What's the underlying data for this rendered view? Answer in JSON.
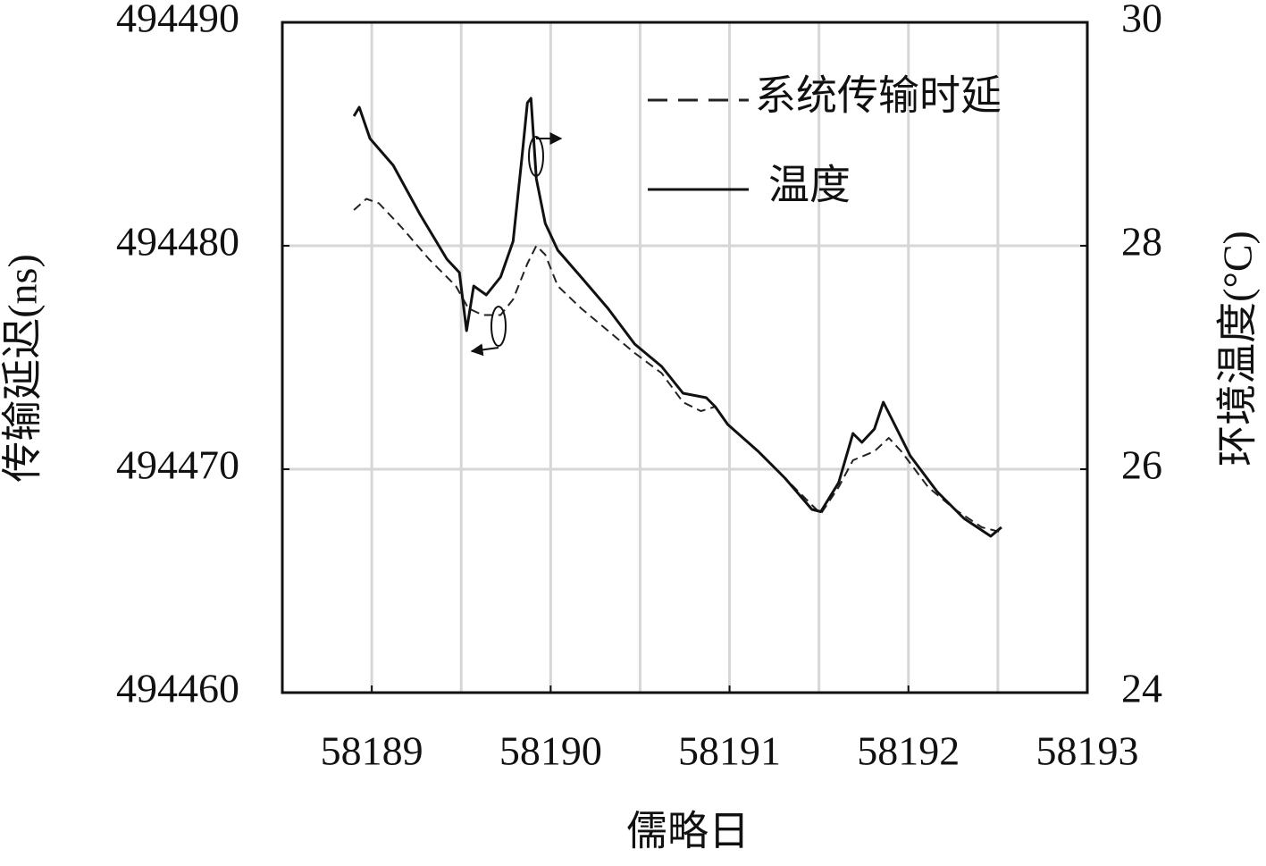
{
  "chart_data": {
    "type": "line",
    "xlabel": "儒略日",
    "ylabel": "传输延迟(ns)",
    "y2label": "环境温度(°C)",
    "xlim": [
      58188.5,
      58193
    ],
    "xticks": [
      58189,
      58190,
      58191,
      58192,
      58193
    ],
    "xgrid": [
      58189,
      58189.5,
      58190,
      58190.5,
      58191,
      58191.5,
      58192,
      58192.5
    ],
    "ylim": [
      494460,
      494490
    ],
    "yticks": [
      494460,
      494470,
      494480,
      494490
    ],
    "y2lim": [
      24,
      30
    ],
    "y2ticks": [
      24,
      26,
      28,
      30
    ],
    "grid": true,
    "legend": "upper right",
    "series": [
      {
        "name": "系统传输时延",
        "color": "#222222",
        "dash": true,
        "x": [
          58188.9,
          58188.97,
          58189.04,
          58189.17,
          58189.32,
          58189.47,
          58189.54,
          58189.62,
          58189.72,
          58189.79,
          58189.87,
          58189.92,
          58189.97,
          58190.04,
          58190.17,
          58190.32,
          58190.47,
          58190.62,
          58190.74,
          58190.84,
          58190.92,
          58190.99,
          58191.16,
          58191.31,
          58191.46,
          58191.51,
          58191.61,
          58191.69,
          58191.81,
          58191.89,
          58191.96,
          58192.11,
          58192.26,
          58192.41,
          58192.51
        ],
        "values": [
          494481.6,
          494482.1,
          494481.9,
          494480.8,
          494479.4,
          494478.2,
          494477.2,
          494476.9,
          494476.9,
          494477.6,
          494479.2,
          494480.0,
          494479.6,
          494478.2,
          494477.2,
          494476.2,
          494475.2,
          494474.3,
          494473.0,
          494472.6,
          494472.8,
          494472.0,
          494470.8,
          494469.6,
          494468.4,
          494468.0,
          494469.2,
          494470.4,
          494470.8,
          494471.4,
          494470.8,
          494469.2,
          494468.2,
          494467.4,
          494467.2
        ]
      },
      {
        "name": "温度",
        "color": "#111111",
        "dash": false,
        "axis": "y2",
        "x": [
          58188.9,
          58188.93,
          58188.99,
          58189.12,
          58189.27,
          58189.42,
          58189.49,
          58189.53,
          58189.57,
          58189.64,
          58189.72,
          58189.79,
          58189.84,
          58189.87,
          58189.89,
          58189.92,
          58189.97,
          58190.04,
          58190.17,
          58190.32,
          58190.47,
          58190.62,
          58190.74,
          58190.87,
          58190.92,
          58190.99,
          58191.16,
          58191.31,
          58191.46,
          58191.51,
          58191.61,
          58191.69,
          58191.74,
          58191.81,
          58191.86,
          58191.91,
          58192.01,
          58192.16,
          58192.31,
          58192.46,
          58192.52
        ],
        "values": [
          29.16,
          29.24,
          28.96,
          28.72,
          28.28,
          27.88,
          27.76,
          27.24,
          27.64,
          27.56,
          27.72,
          28.04,
          28.8,
          29.28,
          29.32,
          28.6,
          28.2,
          27.96,
          27.72,
          27.44,
          27.12,
          26.92,
          26.68,
          26.64,
          26.56,
          26.4,
          26.16,
          25.92,
          25.64,
          25.62,
          25.88,
          26.32,
          26.24,
          26.36,
          26.6,
          26.44,
          26.12,
          25.8,
          25.56,
          25.4,
          25.48
        ]
      }
    ]
  }
}
